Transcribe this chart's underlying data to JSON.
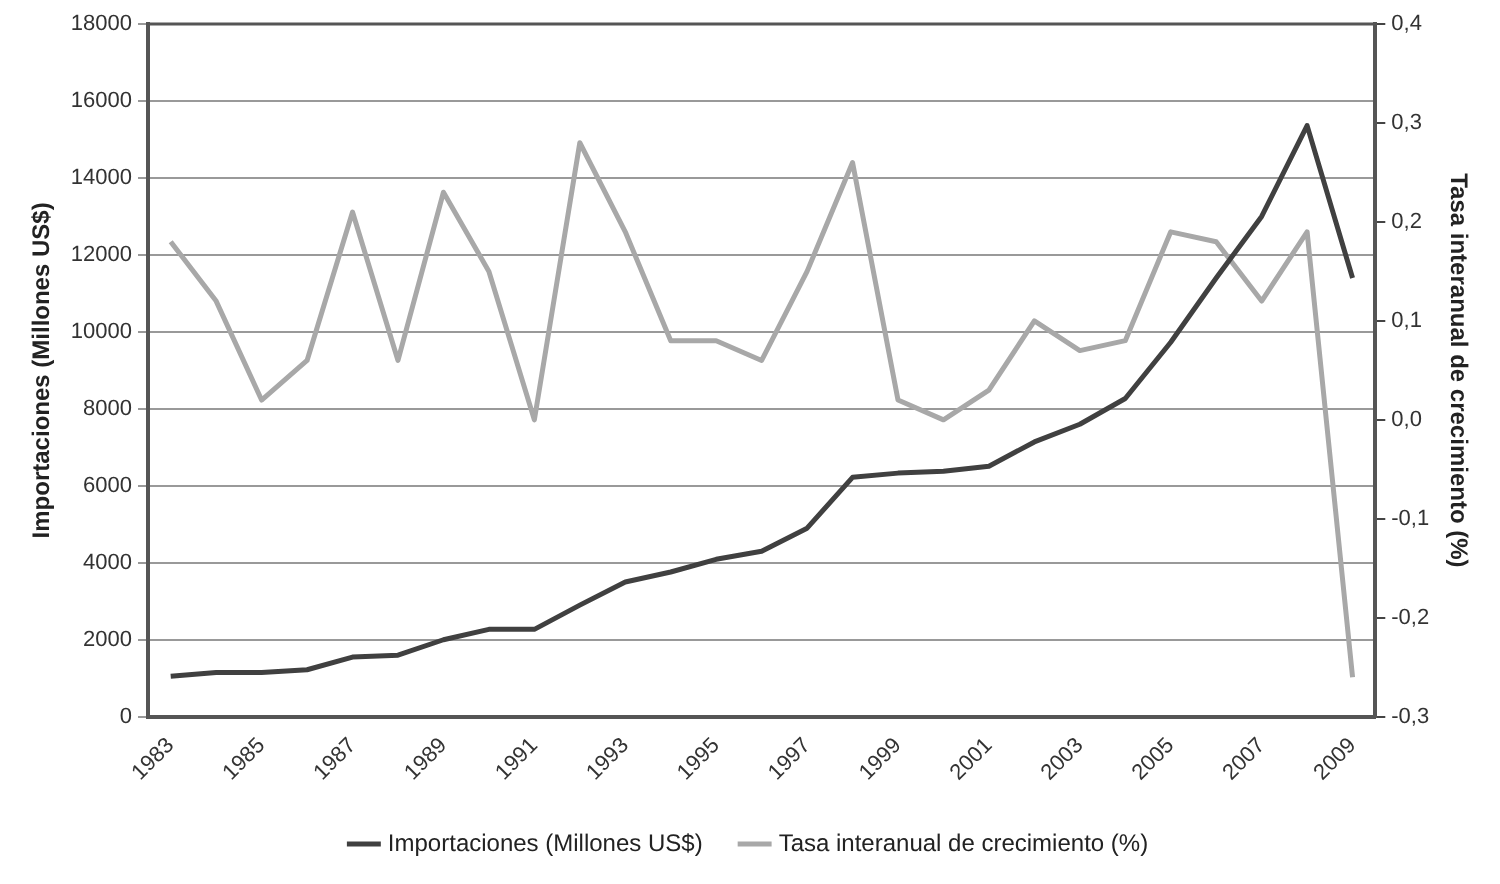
{
  "chart_data": {
    "type": "line",
    "categories": [
      "1983",
      null,
      "1985",
      null,
      "1987",
      null,
      "1989",
      null,
      "1991",
      null,
      "1993",
      null,
      "1995",
      null,
      "1997",
      null,
      "1999",
      null,
      "2001",
      null,
      "2003",
      null,
      "2005",
      null,
      "2007",
      null,
      "2009"
    ],
    "series": [
      {
        "name": "Importaciones (Millones US$)",
        "color": "#404040",
        "values": [
          1050,
          1150,
          1150,
          1220,
          1550,
          1600,
          2000,
          2270,
          2270,
          2900,
          3500,
          3760,
          4090,
          4300,
          4900,
          6220,
          6330,
          6380,
          6510,
          7140,
          7600,
          8270,
          9730,
          11400,
          13000,
          15360,
          11400
        ]
      },
      {
        "name": "Tasa interanual de crecimiento (%)",
        "color": "#a8a8a8",
        "axis": "y2",
        "values": [
          0.18,
          0.12,
          0.02,
          0.06,
          0.21,
          0.06,
          0.23,
          0.15,
          0.0,
          0.28,
          0.19,
          0.08,
          0.08,
          0.06,
          0.15,
          0.26,
          0.02,
          0.0,
          0.03,
          0.1,
          0.07,
          0.08,
          0.19,
          0.18,
          0.12,
          0.19,
          -0.26
        ]
      }
    ],
    "ylabel": "Importaciones (Millones US$)",
    "y2label": "Tasa interanual de crecimiento (%)",
    "ylim": [
      0,
      18000
    ],
    "yticks": [
      0,
      2000,
      4000,
      6000,
      8000,
      10000,
      12000,
      14000,
      16000,
      18000
    ],
    "y2lim": [
      -0.3,
      0.4
    ],
    "y2ticks": [
      {
        "value": -0.3,
        "label": "-0,3"
      },
      {
        "value": -0.2,
        "label": "-0,2"
      },
      {
        "value": -0.1,
        "label": "-0,1"
      },
      {
        "value": 0,
        "label": "0,0"
      },
      {
        "value": 0.1,
        "label": "0,1"
      },
      {
        "value": 0.2,
        "label": "0,2"
      },
      {
        "value": 0.3,
        "label": "0,3"
      },
      {
        "value": 0.4,
        "label": "0,4"
      }
    ],
    "grid": "y",
    "legend": "bottom",
    "marker": "none",
    "line_style": "solid"
  }
}
